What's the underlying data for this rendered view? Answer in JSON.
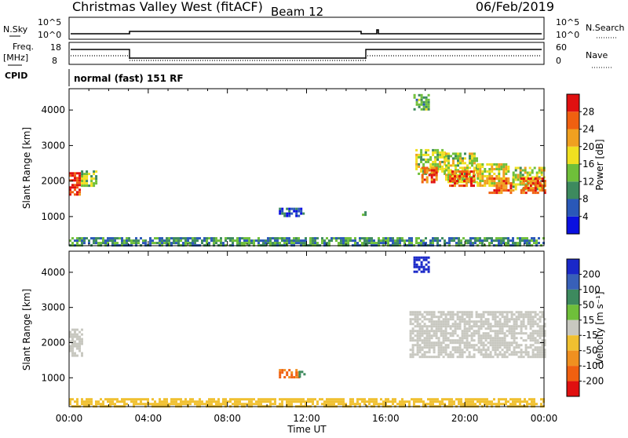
{
  "header": {
    "station": "Christmas Valley West (fitACF)",
    "beam": "Beam 12",
    "date": "06/Feb/2019"
  },
  "panels": {
    "nsky_label": "N.Sky",
    "nsky_ticks": [
      "10^5",
      "10^0"
    ],
    "nsearch_label": "N.Search",
    "nsearch_ticks": [
      "10^5",
      "10^0"
    ],
    "freq_label_1": "Freq.",
    "freq_label_2": "[MHz]",
    "freq_ticks": [
      "18",
      "8"
    ],
    "nave_label": "Nave",
    "nave_ticks": [
      "60",
      "0"
    ],
    "cpid_label": "CPID",
    "cpid_text": "normal (fast) 151 RF"
  },
  "axes": {
    "ylabel": "Slant Range [km]",
    "xlabel": "Time UT",
    "y_ticks": [
      "1000",
      "2000",
      "3000",
      "4000"
    ],
    "x_ticks": [
      "00:00",
      "04:00",
      "08:00",
      "12:00",
      "16:00",
      "20:00",
      "00:00"
    ]
  },
  "colorbars": {
    "power": {
      "label": "Power [dB]",
      "ticks": [
        "4",
        "8",
        "12",
        "16",
        "20",
        "24",
        "28"
      ],
      "colors": [
        "#0a10e0",
        "#2a58b8",
        "#3d8a5e",
        "#6fbf3a",
        "#f0e020",
        "#f0a020",
        "#f06010",
        "#e01010"
      ]
    },
    "velocity": {
      "label": "Velocity [m s⁻¹]",
      "ticks": [
        "200",
        "100",
        "50",
        "15",
        "-15",
        "-50",
        "-100",
        "-200"
      ],
      "colors": [
        "#1a28c8",
        "#3860b8",
        "#3d8a5e",
        "#6fbf3a",
        "#c8c8c0",
        "#f0c030",
        "#f09020",
        "#f06010",
        "#e01010"
      ]
    }
  },
  "chart_data": [
    {
      "type": "heatmap",
      "title": "Power",
      "x_range_hours": [
        0,
        24
      ],
      "ylim_km": [
        180,
        4600
      ],
      "colorbar": "power",
      "patches": [
        {
          "t": [
            0.0,
            0.6
          ],
          "r": [
            1650,
            2250
          ],
          "level": 28
        },
        {
          "t": [
            0.6,
            1.4
          ],
          "r": [
            1900,
            2300
          ],
          "level": 14
        },
        {
          "t": [
            10.6,
            11.9
          ],
          "r": [
            1000,
            1250
          ],
          "level": 6
        },
        {
          "t": [
            14.8,
            15.0
          ],
          "r": [
            1050,
            1150
          ],
          "level": 12
        },
        {
          "t": [
            17.4,
            18.2
          ],
          "r": [
            4000,
            4450
          ],
          "level": 12
        },
        {
          "t": [
            17.5,
            19.0
          ],
          "r": [
            2200,
            2900
          ],
          "level": 16
        },
        {
          "t": [
            17.8,
            18.6
          ],
          "r": [
            1950,
            2400
          ],
          "level": 26
        },
        {
          "t": [
            19.0,
            20.6
          ],
          "r": [
            2000,
            2800
          ],
          "level": 16
        },
        {
          "t": [
            19.2,
            20.4
          ],
          "r": [
            1900,
            2300
          ],
          "level": 26
        },
        {
          "t": [
            20.6,
            22.2
          ],
          "r": [
            1900,
            2500
          ],
          "level": 18
        },
        {
          "t": [
            21.2,
            22.4
          ],
          "r": [
            1700,
            2100
          ],
          "level": 26
        },
        {
          "t": [
            22.4,
            24.0
          ],
          "r": [
            1800,
            2400
          ],
          "level": 16
        },
        {
          "t": [
            22.8,
            24.0
          ],
          "r": [
            1700,
            2100
          ],
          "level": 26
        },
        {
          "t": [
            0.0,
            24.0
          ],
          "r": [
            200,
            420
          ],
          "level": 10
        }
      ]
    },
    {
      "type": "heatmap",
      "title": "Velocity",
      "x_range_hours": [
        0,
        24
      ],
      "ylim_km": [
        180,
        4600
      ],
      "colorbar": "velocity",
      "patches": [
        {
          "t": [
            0.0,
            0.7
          ],
          "r": [
            1650,
            2400
          ],
          "level": 0
        },
        {
          "t": [
            10.6,
            11.6
          ],
          "r": [
            1000,
            1250
          ],
          "level": -100
        },
        {
          "t": [
            11.6,
            11.9
          ],
          "r": [
            1000,
            1200
          ],
          "level": 50
        },
        {
          "t": [
            17.4,
            18.2
          ],
          "r": [
            4000,
            4450
          ],
          "level": 200
        },
        {
          "t": [
            17.2,
            24.0
          ],
          "r": [
            1600,
            2900
          ],
          "level": 0
        },
        {
          "t": [
            0.0,
            24.0
          ],
          "r": [
            200,
            420
          ],
          "level": -30
        }
      ]
    }
  ]
}
